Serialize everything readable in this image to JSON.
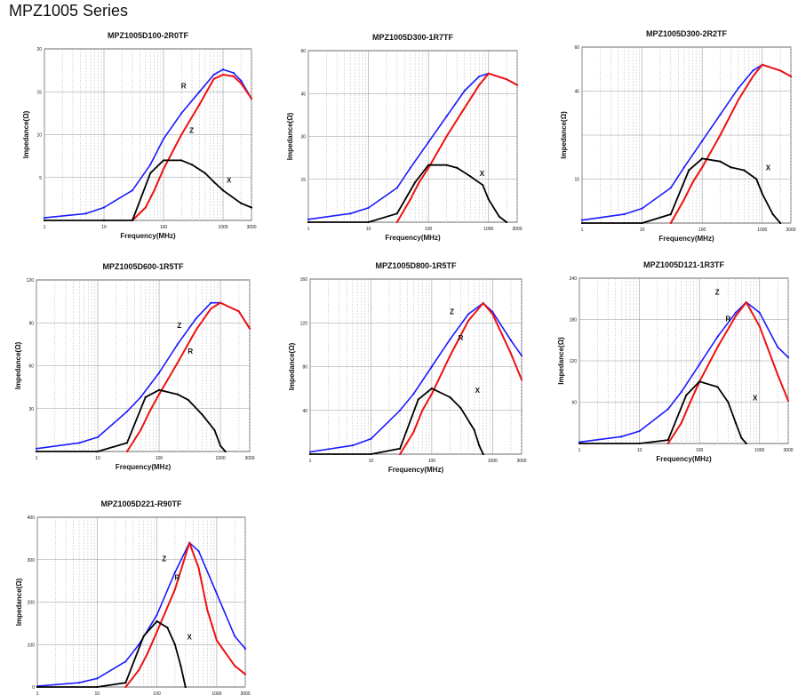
{
  "page": {
    "title": "MPZ1005 Series"
  },
  "colors": {
    "Z": "#1a1aff",
    "R": "#ee1111",
    "X": "#000000",
    "grid": "#9a9a9a",
    "gridMinor": "#c4c4c4",
    "hline": "#000000"
  },
  "chart_data": [
    {
      "type": "line",
      "title": "MPZ1005D100-2R0TF",
      "xlabel": "Frequency(MHz)",
      "ylabel": "Impedance(Ω)",
      "xscale": "log",
      "xlim": [
        1,
        3000
      ],
      "ylim": [
        0,
        20
      ],
      "xticks": [
        "1",
        "10",
        "100",
        "1000",
        "3000"
      ],
      "yticks": [
        "5",
        "10",
        "15",
        "20"
      ],
      "annotations": [
        "R",
        "Z",
        "X"
      ],
      "grid": true,
      "series": [
        {
          "name": "Z",
          "x": [
            1,
            5,
            10,
            30,
            60,
            100,
            200,
            400,
            700,
            1000,
            1500,
            2000,
            3000
          ],
          "y": [
            0.3,
            0.8,
            1.5,
            3.5,
            6.5,
            9.5,
            12.5,
            15,
            17,
            17.6,
            17.2,
            16.3,
            14.2
          ]
        },
        {
          "name": "R",
          "x": [
            30,
            50,
            70,
            100,
            200,
            400,
            700,
            1000,
            1500,
            2000,
            3000
          ],
          "y": [
            0,
            1.5,
            3.5,
            6,
            10,
            13.5,
            16.5,
            17,
            16.8,
            16,
            14.2
          ]
        },
        {
          "name": "X",
          "x": [
            1,
            10,
            30,
            60,
            100,
            200,
            300,
            500,
            700,
            1000,
            2000,
            3000
          ],
          "y": [
            0,
            0,
            0,
            5.5,
            7,
            7,
            6.5,
            5.5,
            4.5,
            3.5,
            2,
            1.5
          ]
        }
      ]
    },
    {
      "type": "line",
      "title": "MPZ1005D300-1R7TF",
      "xlabel": "Frequency(MHz)",
      "ylabel": "Impedance(Ω)",
      "xscale": "log",
      "xlim": [
        1,
        3000
      ],
      "ylim": [
        0,
        60
      ],
      "xticks": [
        "1",
        "10",
        "100",
        "1000",
        "3000"
      ],
      "yticks": [
        "15",
        "30",
        "45",
        "60"
      ],
      "annotations": [
        "X"
      ],
      "grid": true,
      "series": [
        {
          "name": "Z",
          "x": [
            1,
            5,
            10,
            30,
            50,
            100,
            200,
            400,
            700,
            1000,
            2000,
            3000
          ],
          "y": [
            1,
            3,
            5,
            12,
            19,
            28,
            37,
            46,
            51,
            52,
            50,
            48
          ]
        },
        {
          "name": "R",
          "x": [
            30,
            50,
            70,
            100,
            200,
            400,
            700,
            1000,
            2000,
            3000
          ],
          "y": [
            0,
            8,
            14,
            19,
            30,
            40,
            48,
            52,
            50,
            48
          ]
        },
        {
          "name": "X",
          "x": [
            1,
            10,
            30,
            60,
            100,
            200,
            300,
            500,
            800,
            1000,
            1500,
            2000
          ],
          "y": [
            0,
            0,
            3,
            14,
            20,
            20,
            19,
            16,
            13,
            8,
            2,
            0
          ]
        }
      ]
    },
    {
      "type": "line",
      "title": "MPZ1005D300-2R2TF",
      "xlabel": "Frequency(MHz)",
      "ylabel": "Impedance(Ω)",
      "xscale": "log",
      "xlim": [
        1,
        3000
      ],
      "ylim": [
        0,
        60
      ],
      "xticks": [
        "1",
        "10",
        "100",
        "1000",
        "3000"
      ],
      "yticks": [
        "15",
        "45",
        "60"
      ],
      "annotations": [
        "X"
      ],
      "grid": true,
      "series": [
        {
          "name": "Z",
          "x": [
            1,
            5,
            10,
            30,
            50,
            100,
            200,
            400,
            700,
            1000,
            2000,
            3000
          ],
          "y": [
            1,
            3,
            5,
            12,
            19,
            28,
            37,
            46,
            52,
            54,
            52,
            50
          ]
        },
        {
          "name": "R",
          "x": [
            30,
            50,
            70,
            100,
            200,
            400,
            700,
            1000,
            2000,
            3000
          ],
          "y": [
            0,
            8,
            14,
            19,
            30,
            42,
            50,
            54,
            52,
            50
          ]
        },
        {
          "name": "X",
          "x": [
            1,
            10,
            30,
            60,
            100,
            200,
            300,
            500,
            800,
            1000,
            1500,
            2000
          ],
          "y": [
            0,
            0,
            3,
            18,
            22,
            21,
            19,
            18,
            15,
            10,
            3,
            0
          ]
        }
      ]
    },
    {
      "type": "line",
      "title": "MPZ1005D600-1R5TF",
      "xlabel": "Frequency(MHz)",
      "ylabel": "Impedance(Ω)",
      "xscale": "log",
      "xlim": [
        1,
        3000
      ],
      "ylim": [
        0,
        120
      ],
      "xticks": [
        "1",
        "10",
        "100",
        "1000",
        "3000"
      ],
      "yticks": [
        "30",
        "60",
        "90",
        "120"
      ],
      "annotations": [
        "Z",
        "R"
      ],
      "grid": true,
      "series": [
        {
          "name": "Z",
          "x": [
            1,
            5,
            10,
            30,
            50,
            100,
            200,
            400,
            700,
            1000,
            2000,
            3000
          ],
          "y": [
            2,
            6,
            10,
            28,
            38,
            55,
            75,
            93,
            104,
            104,
            98,
            86
          ]
        },
        {
          "name": "R",
          "x": [
            30,
            50,
            70,
            100,
            200,
            400,
            700,
            1000,
            2000,
            3000
          ],
          "y": [
            0,
            15,
            28,
            40,
            62,
            85,
            100,
            104,
            98,
            86
          ]
        },
        {
          "name": "X",
          "x": [
            1,
            10,
            30,
            60,
            100,
            200,
            300,
            500,
            800,
            1000,
            1200
          ],
          "y": [
            0,
            0,
            6,
            38,
            43,
            40,
            36,
            26,
            15,
            4,
            0
          ]
        }
      ]
    },
    {
      "type": "line",
      "title": "MPZ1005D800-1R5TF",
      "xlabel": "Frequency(MHz)",
      "ylabel": "Impedance(Ω)",
      "xscale": "log",
      "xlim": [
        1,
        3000
      ],
      "ylim": [
        0,
        160
      ],
      "xticks": [
        "1",
        "10",
        "100",
        "1000",
        "3000"
      ],
      "yticks": [
        "40",
        "80",
        "120",
        "160"
      ],
      "annotations": [
        "Z",
        "R",
        "X"
      ],
      "grid": true,
      "series": [
        {
          "name": "Z",
          "x": [
            1,
            5,
            10,
            30,
            50,
            100,
            200,
            400,
            700,
            1000,
            2000,
            3000
          ],
          "y": [
            2,
            8,
            14,
            40,
            55,
            80,
            105,
            128,
            138,
            130,
            104,
            90
          ]
        },
        {
          "name": "R",
          "x": [
            30,
            50,
            70,
            100,
            200,
            400,
            700,
            1000,
            2000,
            3000
          ],
          "y": [
            0,
            20,
            40,
            55,
            90,
            122,
            138,
            128,
            92,
            68
          ]
        },
        {
          "name": "X",
          "x": [
            1,
            10,
            30,
            60,
            100,
            200,
            300,
            500,
            600,
            700
          ],
          "y": [
            0,
            0,
            5,
            50,
            60,
            52,
            42,
            22,
            8,
            0
          ]
        }
      ]
    },
    {
      "type": "line",
      "title": "MPZ1005D121-1R3TF",
      "xlabel": "Frequency(MHz)",
      "ylabel": "Impedance(Ω)",
      "xscale": "log",
      "xlim": [
        1,
        3000
      ],
      "ylim": [
        0,
        240
      ],
      "xticks": [
        "1",
        "10",
        "100",
        "1000",
        "3000"
      ],
      "yticks": [
        "60",
        "120",
        "180",
        "240"
      ],
      "annotations": [
        "Z",
        "R",
        "X"
      ],
      "grid": true,
      "series": [
        {
          "name": "Z",
          "x": [
            1,
            5,
            10,
            30,
            50,
            100,
            200,
            400,
            600,
            1000,
            2000,
            3000
          ],
          "y": [
            2,
            10,
            18,
            50,
            75,
            115,
            155,
            190,
            205,
            190,
            140,
            125
          ]
        },
        {
          "name": "R",
          "x": [
            30,
            50,
            70,
            100,
            200,
            400,
            600,
            1000,
            2000,
            3000
          ],
          "y": [
            0,
            30,
            60,
            90,
            140,
            185,
            205,
            170,
            100,
            62
          ]
        },
        {
          "name": "X",
          "x": [
            1,
            10,
            30,
            60,
            100,
            200,
            300,
            400,
            500,
            600
          ],
          "y": [
            0,
            0,
            5,
            70,
            90,
            82,
            60,
            30,
            8,
            0
          ]
        }
      ]
    },
    {
      "type": "line",
      "title": "MPZ1005D221-R90TF",
      "xlabel": "Frequency(MHz)",
      "ylabel": "Impedance(Ω)",
      "xscale": "log",
      "xlim": [
        1,
        3000
      ],
      "ylim": [
        0,
        400
      ],
      "xticks": [
        "1",
        "10",
        "100",
        "1000",
        "3000"
      ],
      "yticks": [
        "0",
        "100",
        "200",
        "300",
        "400"
      ],
      "annotations": [
        "Z",
        "R",
        "X"
      ],
      "grid": true,
      "series": [
        {
          "name": "Z",
          "x": [
            1,
            5,
            10,
            30,
            50,
            100,
            200,
            350,
            500,
            1000,
            2000,
            3000
          ],
          "y": [
            2,
            10,
            20,
            60,
            100,
            170,
            270,
            340,
            320,
            220,
            120,
            90
          ]
        },
        {
          "name": "R",
          "x": [
            30,
            50,
            70,
            100,
            200,
            350,
            500,
            700,
            1000,
            2000,
            3000
          ],
          "y": [
            0,
            40,
            80,
            130,
            230,
            340,
            280,
            180,
            110,
            50,
            30
          ]
        },
        {
          "name": "X",
          "x": [
            1,
            10,
            30,
            60,
            100,
            150,
            200,
            250,
            300
          ],
          "y": [
            0,
            0,
            10,
            120,
            155,
            140,
            100,
            50,
            0
          ]
        }
      ]
    }
  ]
}
